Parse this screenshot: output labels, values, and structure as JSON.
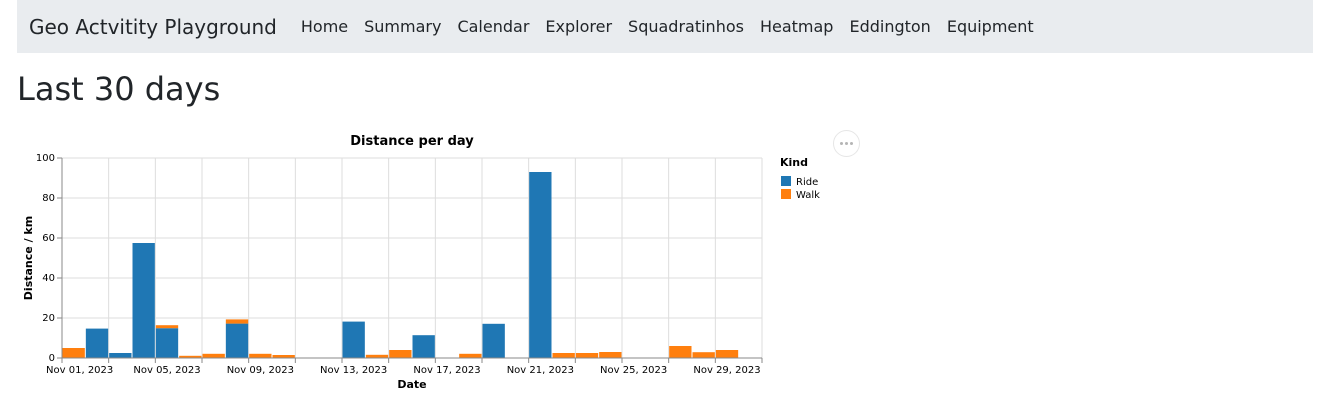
{
  "navbar": {
    "brand": "Geo Actvitity Playground",
    "items": [
      {
        "label": "Home"
      },
      {
        "label": "Summary"
      },
      {
        "label": "Calendar"
      },
      {
        "label": "Explorer"
      },
      {
        "label": "Squadratinhos"
      },
      {
        "label": "Heatmap"
      },
      {
        "label": "Eddington"
      },
      {
        "label": "Equipment"
      }
    ]
  },
  "page": {
    "title": "Last 30 days"
  },
  "chart_data": {
    "type": "bar",
    "title": "Distance per day",
    "xlabel": "Date",
    "ylabel": "Distance / km",
    "ylim": [
      0,
      100
    ],
    "yticks": [
      0,
      20,
      40,
      60,
      80,
      100
    ],
    "xticks": [
      "Nov 01, 2023",
      "Nov 05, 2023",
      "Nov 09, 2023",
      "Nov 13, 2023",
      "Nov 17, 2023",
      "Nov 21, 2023",
      "Nov 25, 2023",
      "Nov 29, 2023"
    ],
    "grid": true,
    "legend": {
      "title": "Kind",
      "placement": "right"
    },
    "categories": [
      "Nov 01, 2023",
      "Nov 02, 2023",
      "Nov 03, 2023",
      "Nov 04, 2023",
      "Nov 05, 2023",
      "Nov 06, 2023",
      "Nov 07, 2023",
      "Nov 08, 2023",
      "Nov 09, 2023",
      "Nov 10, 2023",
      "Nov 11, 2023",
      "Nov 12, 2023",
      "Nov 13, 2023",
      "Nov 14, 2023",
      "Nov 15, 2023",
      "Nov 16, 2023",
      "Nov 17, 2023",
      "Nov 18, 2023",
      "Nov 19, 2023",
      "Nov 20, 2023",
      "Nov 21, 2023",
      "Nov 22, 2023",
      "Nov 23, 2023",
      "Nov 24, 2023",
      "Nov 25, 2023",
      "Nov 26, 2023",
      "Nov 27, 2023",
      "Nov 28, 2023",
      "Nov 29, 2023",
      "Nov 30, 2023"
    ],
    "series": [
      {
        "name": "Ride",
        "color": "#1f77b4",
        "values": [
          0,
          14.7,
          2.5,
          57.5,
          14.9,
          0,
          0,
          17.2,
          0,
          0,
          0,
          0,
          18.2,
          0,
          0,
          11.4,
          0,
          0,
          17.1,
          0,
          93.0,
          0,
          0,
          0,
          0,
          0,
          0,
          0,
          0,
          0
        ]
      },
      {
        "name": "Walk",
        "color": "#ff7f0e",
        "values": [
          5.0,
          0,
          0,
          0,
          1.5,
          1.1,
          2.1,
          2.1,
          2.1,
          1.5,
          0,
          0,
          0,
          1.6,
          4.0,
          0,
          0,
          2.1,
          0,
          0,
          0,
          2.5,
          2.5,
          3.0,
          0,
          0,
          6.0,
          2.9,
          4.0,
          0
        ]
      }
    ]
  }
}
